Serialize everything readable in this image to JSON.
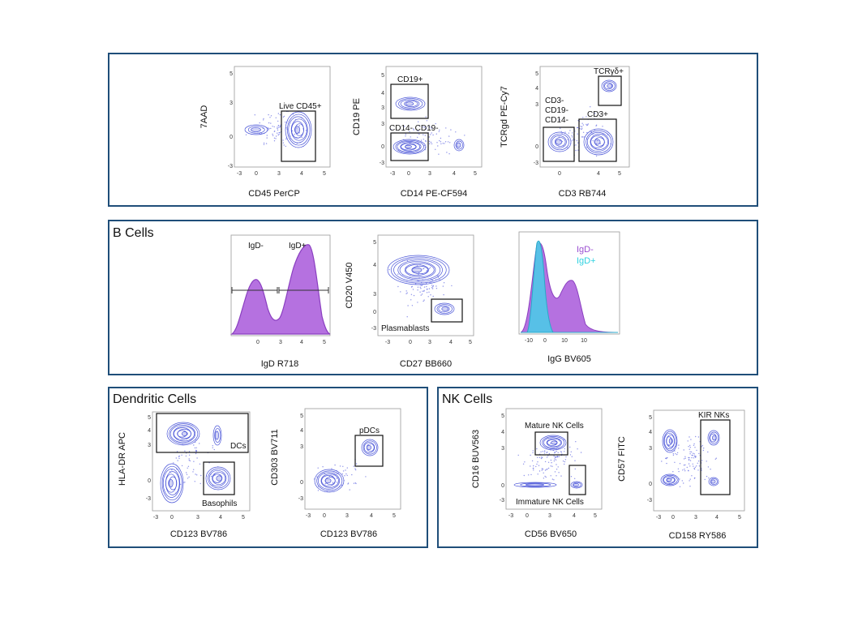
{
  "colors": {
    "panel_border": "#1f4e79",
    "contour": "#4a55d8",
    "dots": "#5b63e0",
    "purple_fill": "#b571e0",
    "purple_line": "#8a3fc0",
    "cyan_fill": "#4cc9e8",
    "legend_igd_neg": "#9b4fd1",
    "legend_igd_pos": "#2ed1e0"
  },
  "sections": {
    "b_cells": "B Cells",
    "dendritic": "Dendritic Cells",
    "nk": "NK Cells"
  },
  "ticks": {
    "pos5": "5",
    "pos4": "4",
    "pos3": "3",
    "zero": "0",
    "neg3": "-3",
    "ten": "10",
    "mten": "-10"
  },
  "plots": {
    "p1": {
      "xlabel": "CD45 PerCP",
      "ylabel": "7AAD",
      "gates": [
        "Live CD45+"
      ]
    },
    "p2": {
      "xlabel": "CD14 PE-CF594",
      "ylabel": "CD19 PE",
      "gates": [
        "CD19+",
        "CD14- CD19-"
      ]
    },
    "p3": {
      "xlabel": "CD3 RB744",
      "ylabel": "TCRgd PE-Cy7",
      "gates": [
        "TCRγδ+",
        "CD3-",
        "CD19-",
        "CD14-",
        "CD3+"
      ]
    },
    "b1": {
      "xlabel": "IgD R718",
      "gates": [
        "IgD-",
        "IgD+"
      ]
    },
    "b2": {
      "xlabel": "CD27 BB660",
      "ylabel": "CD20 V450",
      "gates": [
        "Plasmablasts"
      ]
    },
    "b3": {
      "xlabel": "IgG BV605",
      "legend": [
        "IgD-",
        "IgD+"
      ]
    },
    "d1": {
      "xlabel": "CD123 BV786",
      "ylabel": "HLA-DR APC",
      "gates": [
        "DCs",
        "Basophils"
      ]
    },
    "d2": {
      "xlabel": "CD123 BV786",
      "ylabel": "CD303 BV711",
      "gates": [
        "pDCs"
      ]
    },
    "n1": {
      "xlabel": "CD56 BV650",
      "ylabel": "CD16 BUV563",
      "gates": [
        "Mature NK Cells",
        "Immature NK Cells"
      ]
    },
    "n2": {
      "xlabel": "CD158 RY586",
      "ylabel": "CD57 FITC",
      "gates": [
        "KIR NKs"
      ]
    }
  }
}
